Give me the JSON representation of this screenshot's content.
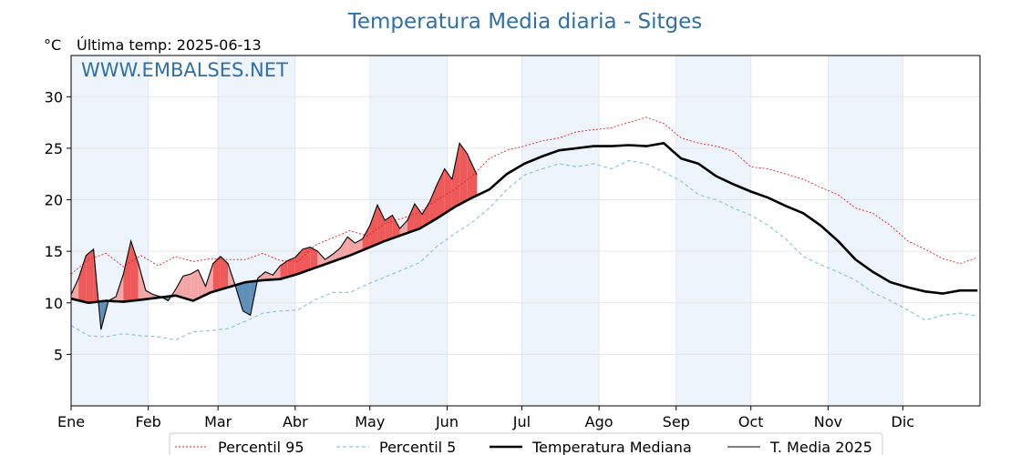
{
  "chart_data": {
    "type": "line",
    "title": "Temperatura Media diaria - Sitges",
    "unit": "°C",
    "last_update_label": "Última temp: 2025-06-13",
    "watermark": "WWW.EMBALSES.NET",
    "months": [
      "Ene",
      "Feb",
      "Mar",
      "Abr",
      "May",
      "Jun",
      "Jul",
      "Ago",
      "Sep",
      "Oct",
      "Nov",
      "Dic"
    ],
    "month_start_days": [
      1,
      32,
      60,
      91,
      121,
      152,
      182,
      213,
      244,
      274,
      305,
      335
    ],
    "days_in_year": 365,
    "ylim": [
      0,
      34
    ],
    "yticks": [
      5,
      10,
      15,
      20,
      25,
      30
    ],
    "grid": true,
    "legend_position": "bottom",
    "colors": {
      "title": "#2f6fa8",
      "watermark": "#2f6fa8",
      "p95": "#e02020",
      "p5": "#8ec5dc",
      "median": "#000000",
      "current": "#000000",
      "above_fill": "#f4a6a6",
      "above_fill_strong": "#ee5a5a",
      "below_fill": "#5d8fb8",
      "band": "#eef4fb"
    },
    "series": [
      {
        "name": "Percentil 95",
        "key": "p95",
        "x": [
          1,
          8,
          15,
          22,
          29,
          36,
          43,
          50,
          57,
          64,
          71,
          78,
          85,
          92,
          99,
          106,
          113,
          120,
          127,
          134,
          141,
          148,
          155,
          162,
          169,
          176,
          183,
          190,
          197,
          204,
          211,
          218,
          225,
          232,
          239,
          246,
          253,
          260,
          267,
          274,
          281,
          288,
          295,
          302,
          309,
          316,
          323,
          330,
          337,
          344,
          351,
          358,
          365
        ],
        "y": [
          12.8,
          14.2,
          14.8,
          13.5,
          14.6,
          13.6,
          14.5,
          14.0,
          14.3,
          14.2,
          14.2,
          14.8,
          14.1,
          14.0,
          15.6,
          16.3,
          17.0,
          16.5,
          17.7,
          18.2,
          18.8,
          20.0,
          21.0,
          22.3,
          24.0,
          24.8,
          25.2,
          25.7,
          26.0,
          26.6,
          26.8,
          27.0,
          27.5,
          28.0,
          27.4,
          26.0,
          25.5,
          25.2,
          24.7,
          23.2,
          23.0,
          22.5,
          22.0,
          21.2,
          20.5,
          19.2,
          18.7,
          17.5,
          16.0,
          15.2,
          14.3,
          13.8,
          14.4
        ]
      },
      {
        "name": "Percentil 5",
        "key": "p5",
        "x": [
          1,
          8,
          15,
          22,
          29,
          36,
          43,
          50,
          57,
          64,
          71,
          78,
          85,
          92,
          99,
          106,
          113,
          120,
          127,
          134,
          141,
          148,
          155,
          162,
          169,
          176,
          183,
          190,
          197,
          204,
          211,
          218,
          225,
          232,
          239,
          246,
          253,
          260,
          267,
          274,
          281,
          288,
          295,
          302,
          309,
          316,
          323,
          330,
          337,
          344,
          351,
          358,
          365
        ],
        "y": [
          7.8,
          6.8,
          6.7,
          7.0,
          6.8,
          6.7,
          6.4,
          7.2,
          7.3,
          7.5,
          8.2,
          9.0,
          9.2,
          9.3,
          10.3,
          11.0,
          11.0,
          11.8,
          12.5,
          13.2,
          13.9,
          15.5,
          16.7,
          17.8,
          19.2,
          21.0,
          22.4,
          23.0,
          23.5,
          23.2,
          23.5,
          23.0,
          23.8,
          23.5,
          22.7,
          21.8,
          20.5,
          20.0,
          19.2,
          18.5,
          17.5,
          16.2,
          14.5,
          13.7,
          13.0,
          12.2,
          11.0,
          10.2,
          9.3,
          8.3,
          8.8,
          9.0,
          8.7
        ]
      },
      {
        "name": "Temperatura Mediana",
        "key": "median",
        "x": [
          1,
          8,
          15,
          22,
          29,
          36,
          43,
          50,
          57,
          64,
          71,
          78,
          85,
          92,
          99,
          106,
          113,
          120,
          127,
          134,
          141,
          148,
          155,
          162,
          169,
          176,
          183,
          190,
          197,
          204,
          211,
          218,
          225,
          232,
          239,
          246,
          253,
          260,
          267,
          274,
          281,
          288,
          295,
          302,
          309,
          316,
          323,
          330,
          337,
          344,
          351,
          358,
          365
        ],
        "y": [
          10.4,
          10.0,
          10.2,
          10.1,
          10.3,
          10.5,
          10.7,
          10.2,
          11.0,
          11.5,
          12.0,
          12.2,
          12.3,
          12.8,
          13.4,
          14.0,
          14.6,
          15.3,
          16.0,
          16.6,
          17.2,
          18.2,
          19.3,
          20.2,
          21.0,
          22.5,
          23.5,
          24.2,
          24.8,
          25.0,
          25.2,
          25.2,
          25.3,
          25.2,
          25.5,
          24.0,
          23.5,
          22.3,
          21.5,
          20.8,
          20.2,
          19.4,
          18.7,
          17.5,
          16.0,
          14.2,
          13.0,
          12.0,
          11.5,
          11.1,
          10.9,
          11.2,
          11.2
        ]
      },
      {
        "name": "T. Media 2025",
        "key": "current",
        "x": [
          1,
          4,
          7,
          10,
          13,
          16,
          19,
          22,
          25,
          28,
          31,
          34,
          37,
          40,
          43,
          46,
          49,
          52,
          55,
          58,
          61,
          64,
          67,
          70,
          73,
          76,
          79,
          82,
          85,
          88,
          91,
          94,
          97,
          100,
          103,
          106,
          109,
          112,
          115,
          118,
          121,
          124,
          127,
          130,
          133,
          136,
          139,
          142,
          145,
          148,
          151,
          154,
          157,
          160,
          164
        ],
        "y": [
          10.8,
          12.4,
          14.6,
          15.2,
          7.4,
          10.2,
          10.6,
          12.8,
          16.0,
          13.8,
          11.2,
          10.8,
          10.6,
          10.2,
          11.3,
          12.6,
          12.8,
          13.2,
          11.6,
          13.8,
          14.5,
          13.8,
          11.6,
          9.2,
          8.8,
          12.4,
          13.0,
          12.7,
          13.6,
          14.1,
          14.4,
          15.2,
          15.4,
          15.0,
          14.2,
          14.7,
          15.3,
          16.4,
          15.8,
          16.2,
          17.5,
          19.5,
          18.0,
          18.5,
          17.2,
          18.0,
          19.6,
          18.6,
          19.8,
          21.5,
          23.0,
          22.0,
          25.5,
          24.5,
          22.4
        ]
      }
    ]
  }
}
